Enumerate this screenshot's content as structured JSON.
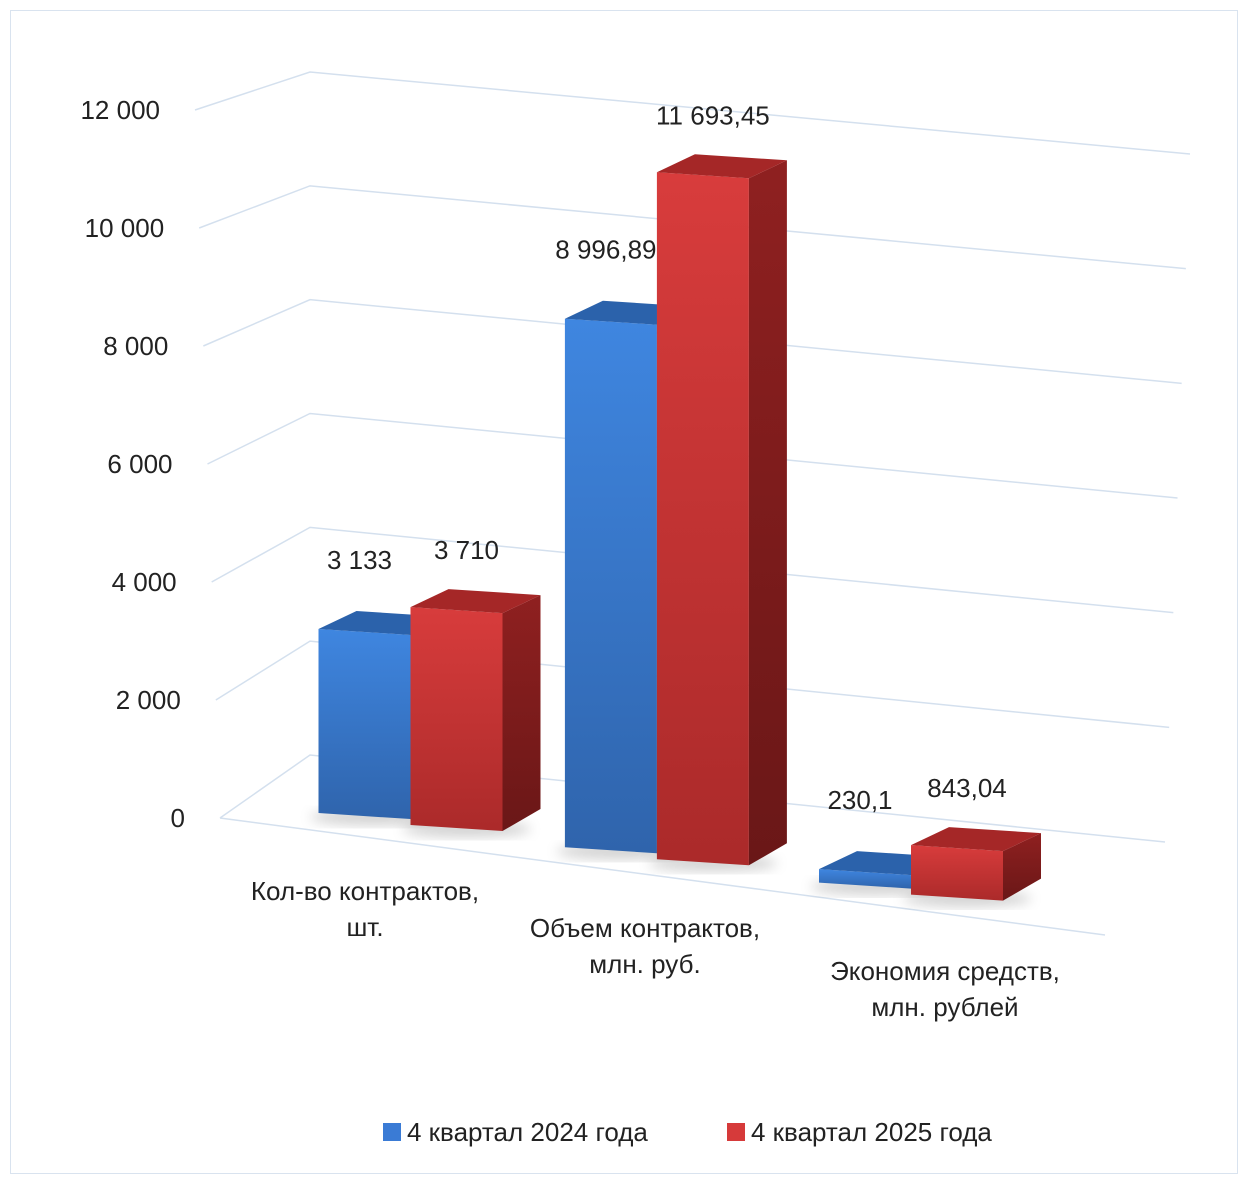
{
  "chart_data": {
    "type": "bar",
    "title": "",
    "xlabel": "",
    "ylabel": "",
    "ylim": [
      0,
      12000
    ],
    "yticks": [
      0,
      2000,
      4000,
      6000,
      8000,
      10000,
      12000
    ],
    "ytick_labels": [
      "0",
      "2 000",
      "4 000",
      "6 000",
      "8 000",
      "10 000",
      "12 000"
    ],
    "categories": [
      [
        "Кол-во контрактов,",
        "шт."
      ],
      [
        "Объем контрактов,",
        "млн. руб."
      ],
      [
        "Экономия средств,",
        "млн. рублей"
      ]
    ],
    "series": [
      {
        "name": "4 квартал 2024 года",
        "color": "#3a7bd5",
        "values": [
          3133,
          8996.89,
          230.1
        ],
        "labels": [
          "3 133",
          "8 996,89",
          "230,1"
        ]
      },
      {
        "name": "4 квартал 2025 года",
        "color": "#d63a3a",
        "values": [
          3710,
          11693.45,
          843.04
        ],
        "labels": [
          "3 710",
          "11 693,45",
          "843,04"
        ]
      }
    ],
    "grid": true,
    "legend": "bottom",
    "style": "3d-column"
  }
}
